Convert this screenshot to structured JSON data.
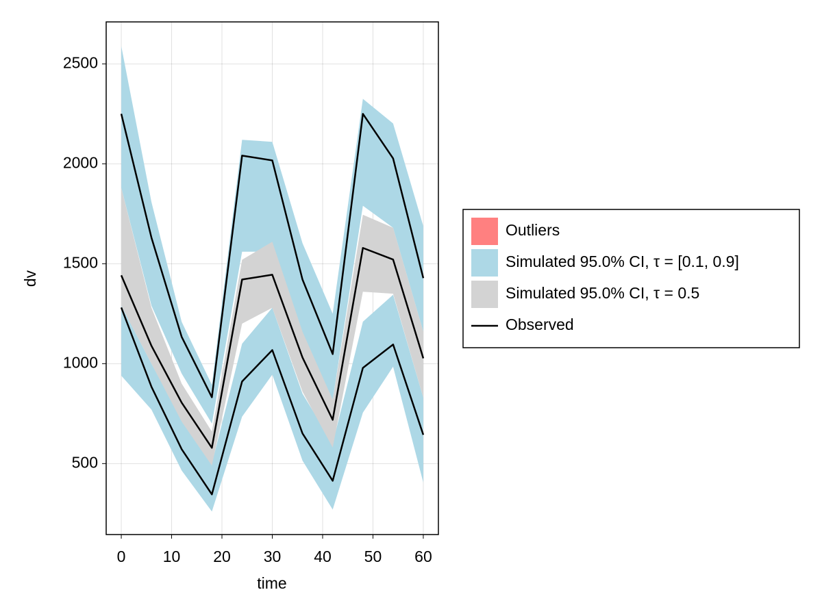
{
  "chart_data": {
    "type": "line",
    "xlabel": "time",
    "ylabel": "dv",
    "x": [
      0,
      6,
      12,
      18,
      24,
      30,
      36,
      42,
      48,
      54,
      60
    ],
    "xlim": [
      -3,
      63
    ],
    "ylim": [
      145,
      2710
    ],
    "xticks": [
      0,
      10,
      20,
      30,
      40,
      50,
      60
    ],
    "yticks": [
      500,
      1000,
      1500,
      2000,
      2500
    ],
    "grid": true,
    "legend_position": "right",
    "outliers": {
      "name": "Outliers",
      "color": "#ff8080"
    },
    "bands": [
      {
        "name": "Simulated 95.0% CI, τ = [0.1, 0.9]",
        "color": "#add8e6",
        "ranges": [
          {
            "lower": [
              1880,
              1290,
              950,
              700,
              1560,
              1560,
              1140,
              820,
              1790,
              1680,
              1160
            ],
            "upper": [
              2589,
              1808,
              1209,
              894,
              2120,
              2110,
              1603,
              1250,
              2325,
              2202,
              1688
            ]
          },
          {
            "lower": [
              940,
              770,
              465,
              260,
              735,
              945,
              515,
              270,
              755,
              985,
              405
            ],
            "upper": [
              1290,
              1000,
              720,
              500,
              1100,
              1280,
              850,
              600,
              1210,
              1345,
              830
            ]
          }
        ]
      },
      {
        "name": "Simulated 95.0% CI, τ = 0.5",
        "color": "#d3d3d3",
        "ranges": [
          {
            "lower": [
              1290,
              1000,
              710,
              490,
              1200,
              1280,
              860,
              580,
              1360,
              1350,
              830
            ],
            "upper": [
              1880,
              1280,
              900,
              660,
              1520,
              1610,
              1160,
              820,
              1745,
              1680,
              1160
            ]
          }
        ]
      }
    ],
    "observed": {
      "name": "Observed",
      "color": "#000000",
      "lines": [
        [
          2250,
          1630,
          1134,
          832,
          2041,
          2017,
          1421,
          1048,
          2250,
          2027,
          1428
        ],
        [
          1442,
          1089,
          805,
          579,
          1421,
          1445,
          1031,
          719,
          1579,
          1521,
          1027
        ],
        [
          1281,
          884,
          572,
          346,
          911,
          1068,
          651,
          414,
          979,
          1096,
          644
        ]
      ]
    }
  }
}
